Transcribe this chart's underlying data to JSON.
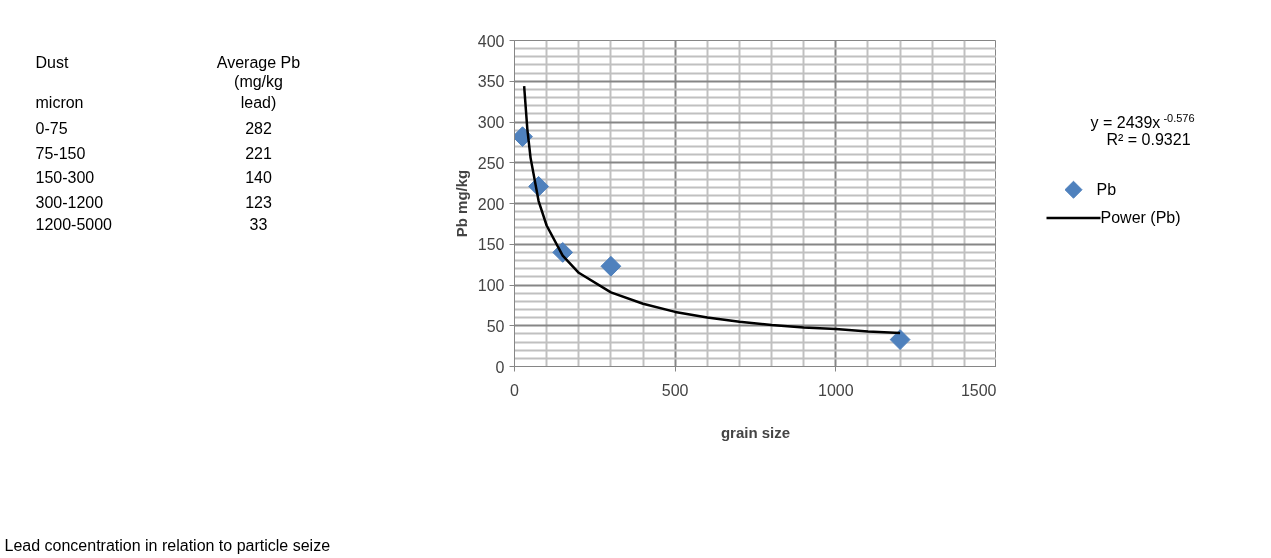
{
  "chart_data": {
    "type": "scatter",
    "xlabel": "grain size",
    "ylabel": "Pb mg/kg",
    "xlim": [
      0,
      1500
    ],
    "ylim": [
      0,
      400
    ],
    "xticks": [
      0,
      500,
      1000,
      1500
    ],
    "yticks": [
      0,
      50,
      100,
      150,
      200,
      250,
      300,
      350,
      400
    ],
    "grid": true,
    "legend": "right",
    "series": [
      {
        "name": "Pb",
        "marker": "diamond",
        "color": "#4f81bd",
        "x": [
          25,
          75,
          150,
          300,
          1200
        ],
        "values": [
          282,
          221,
          140,
          123,
          33
        ]
      },
      {
        "name": "Power (Pb)",
        "type": "line",
        "color": "#000000",
        "x": [
          30,
          40,
          50,
          75,
          100,
          150,
          200,
          300,
          400,
          500,
          600,
          700,
          800,
          900,
          1000,
          1100,
          1200
        ],
        "values": [
          344,
          291,
          256,
          203,
          173,
          136,
          115,
          91,
          77,
          67,
          60,
          55,
          51,
          48,
          46,
          43,
          41
        ]
      }
    ],
    "annotations": [
      "Dust",
      "Average Pb",
      "(mg/kg",
      "micron",
      "lead)",
      "0-75",
      "282",
      "75-150",
      "221",
      "150-300",
      "140",
      "300-1200",
      "123",
      "1200-5000",
      "33",
      "y = 2439x$^{-0.576}$",
      "R² = 0.9321",
      "Lead concentration in relation to particle seize"
    ]
  }
}
